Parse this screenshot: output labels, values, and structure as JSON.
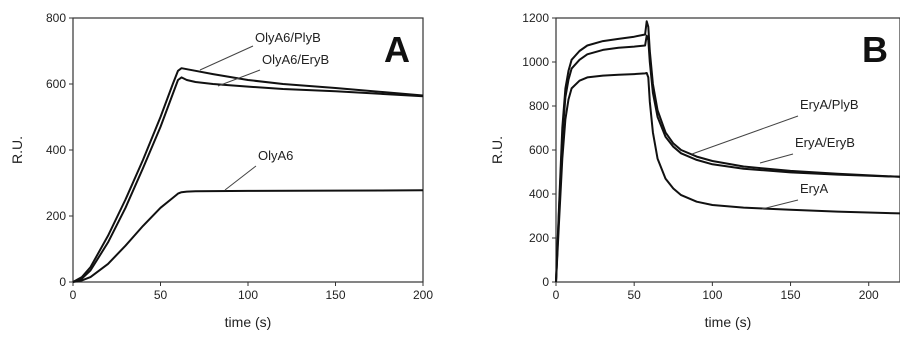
{
  "chart_data": [
    {
      "panel": "A",
      "type": "line",
      "xlabel": "time (s)",
      "ylabel": "R.U.",
      "xlim": [
        0,
        200
      ],
      "ylim": [
        0,
        800
      ],
      "xticks": [
        0,
        50,
        100,
        150,
        200
      ],
      "yticks": [
        0,
        200,
        400,
        600,
        800
      ],
      "series": [
        {
          "name": "OlyA6/PlyB",
          "x": [
            0,
            5,
            10,
            20,
            30,
            40,
            50,
            57,
            60,
            62,
            65,
            70,
            80,
            100,
            120,
            150,
            200
          ],
          "y": [
            0,
            15,
            45,
            140,
            250,
            370,
            500,
            600,
            640,
            648,
            645,
            640,
            630,
            612,
            600,
            588,
            565
          ]
        },
        {
          "name": "OlyA6/EryB",
          "x": [
            0,
            5,
            10,
            20,
            30,
            40,
            50,
            57,
            60,
            62,
            65,
            70,
            80,
            100,
            120,
            150,
            200
          ],
          "y": [
            0,
            10,
            35,
            120,
            225,
            345,
            470,
            570,
            612,
            620,
            612,
            606,
            600,
            592,
            585,
            578,
            563
          ]
        },
        {
          "name": "OlyA6",
          "x": [
            0,
            5,
            10,
            20,
            30,
            40,
            50,
            57,
            60,
            62,
            65,
            70,
            100,
            150,
            200
          ],
          "y": [
            0,
            5,
            15,
            55,
            110,
            170,
            225,
            255,
            268,
            272,
            274,
            275,
            276,
            277,
            278
          ]
        }
      ]
    },
    {
      "panel": "B",
      "type": "line",
      "xlabel": "time (s)",
      "ylabel": "R.U.",
      "xlim": [
        0,
        220
      ],
      "ylim": [
        0,
        1200
      ],
      "xticks": [
        0,
        50,
        100,
        150,
        200
      ],
      "yticks": [
        0,
        200,
        400,
        600,
        800,
        1000,
        1200
      ],
      "series": [
        {
          "name": "EryA/PlyB",
          "x": [
            0,
            2,
            4,
            6,
            8,
            10,
            15,
            20,
            30,
            40,
            50,
            57,
            58,
            59,
            60,
            62,
            65,
            70,
            75,
            80,
            90,
            100,
            120,
            150,
            180,
            220
          ],
          "y": [
            0,
            350,
            700,
            880,
            960,
            1010,
            1050,
            1075,
            1095,
            1105,
            1115,
            1125,
            1185,
            1160,
            1050,
            900,
            780,
            680,
            630,
            600,
            570,
            550,
            525,
            505,
            492,
            478
          ]
        },
        {
          "name": "EryA/EryB",
          "x": [
            0,
            2,
            4,
            6,
            8,
            10,
            15,
            20,
            30,
            40,
            50,
            57,
            58,
            59,
            60,
            62,
            65,
            70,
            75,
            80,
            90,
            100,
            120,
            150,
            180,
            220
          ],
          "y": [
            0,
            330,
            660,
            840,
            920,
            970,
            1010,
            1035,
            1055,
            1065,
            1070,
            1075,
            1120,
            1100,
            1000,
            860,
            750,
            660,
            615,
            585,
            555,
            535,
            515,
            498,
            488,
            478
          ]
        },
        {
          "name": "EryA",
          "x": [
            0,
            2,
            4,
            6,
            8,
            10,
            15,
            20,
            30,
            40,
            50,
            57,
            58,
            59,
            60,
            62,
            65,
            70,
            75,
            80,
            90,
            100,
            120,
            150,
            180,
            220
          ],
          "y": [
            0,
            280,
            560,
            740,
            830,
            880,
            915,
            930,
            938,
            942,
            945,
            948,
            950,
            930,
            820,
            680,
            560,
            470,
            425,
            395,
            365,
            350,
            338,
            328,
            320,
            312
          ]
        }
      ]
    }
  ]
}
